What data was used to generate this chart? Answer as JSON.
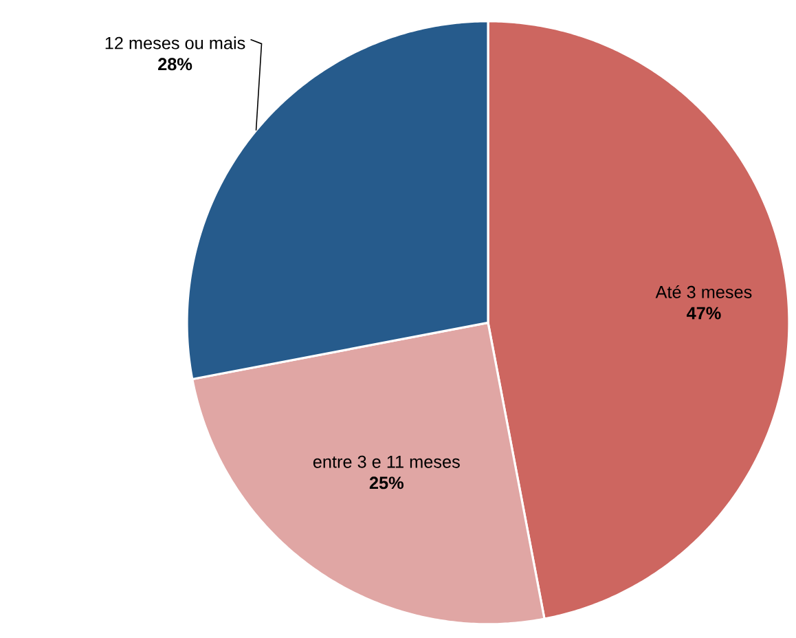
{
  "chart_data": {
    "type": "pie",
    "categories": [
      "Até 3 meses",
      "entre 3 e 11 meses",
      "12 meses ou mais"
    ],
    "values": [
      47,
      25,
      28
    ],
    "value_labels": [
      "47%",
      "25%",
      "28%"
    ],
    "colors": [
      "#cd6660",
      "#e0a6a4",
      "#265b8c"
    ]
  }
}
